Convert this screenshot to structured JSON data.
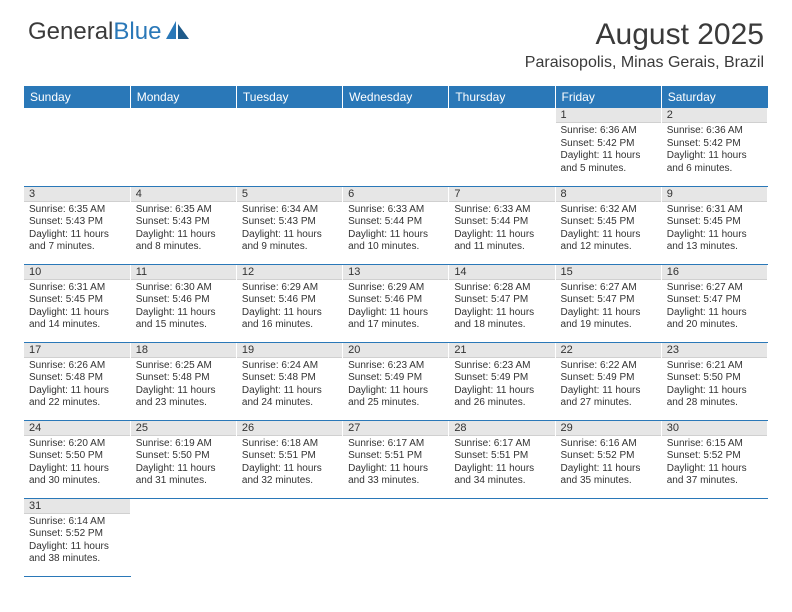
{
  "logo": {
    "text1": "General",
    "text2": "Blue"
  },
  "title": "August 2025",
  "location": "Paraisopolis, Minas Gerais, Brazil",
  "colors": {
    "header_bg": "#2a78b8",
    "header_text": "#ffffff",
    "daynum_bg": "#e6e6e6",
    "border": "#2a78b8",
    "text": "#333333",
    "logo_accent": "#2a78b8"
  },
  "fonts": {
    "title_size": 30,
    "location_size": 16,
    "dayheader_size": 12,
    "daynum_size": 11,
    "content_size": 10
  },
  "day_headers": [
    "Sunday",
    "Monday",
    "Tuesday",
    "Wednesday",
    "Thursday",
    "Friday",
    "Saturday"
  ],
  "weeks": [
    [
      null,
      null,
      null,
      null,
      null,
      {
        "n": "1",
        "sr": "6:36 AM",
        "ss": "5:42 PM",
        "dl": "11 hours and 5 minutes."
      },
      {
        "n": "2",
        "sr": "6:36 AM",
        "ss": "5:42 PM",
        "dl": "11 hours and 6 minutes."
      }
    ],
    [
      {
        "n": "3",
        "sr": "6:35 AM",
        "ss": "5:43 PM",
        "dl": "11 hours and 7 minutes."
      },
      {
        "n": "4",
        "sr": "6:35 AM",
        "ss": "5:43 PM",
        "dl": "11 hours and 8 minutes."
      },
      {
        "n": "5",
        "sr": "6:34 AM",
        "ss": "5:43 PM",
        "dl": "11 hours and 9 minutes."
      },
      {
        "n": "6",
        "sr": "6:33 AM",
        "ss": "5:44 PM",
        "dl": "11 hours and 10 minutes."
      },
      {
        "n": "7",
        "sr": "6:33 AM",
        "ss": "5:44 PM",
        "dl": "11 hours and 11 minutes."
      },
      {
        "n": "8",
        "sr": "6:32 AM",
        "ss": "5:45 PM",
        "dl": "11 hours and 12 minutes."
      },
      {
        "n": "9",
        "sr": "6:31 AM",
        "ss": "5:45 PM",
        "dl": "11 hours and 13 minutes."
      }
    ],
    [
      {
        "n": "10",
        "sr": "6:31 AM",
        "ss": "5:45 PM",
        "dl": "11 hours and 14 minutes."
      },
      {
        "n": "11",
        "sr": "6:30 AM",
        "ss": "5:46 PM",
        "dl": "11 hours and 15 minutes."
      },
      {
        "n": "12",
        "sr": "6:29 AM",
        "ss": "5:46 PM",
        "dl": "11 hours and 16 minutes."
      },
      {
        "n": "13",
        "sr": "6:29 AM",
        "ss": "5:46 PM",
        "dl": "11 hours and 17 minutes."
      },
      {
        "n": "14",
        "sr": "6:28 AM",
        "ss": "5:47 PM",
        "dl": "11 hours and 18 minutes."
      },
      {
        "n": "15",
        "sr": "6:27 AM",
        "ss": "5:47 PM",
        "dl": "11 hours and 19 minutes."
      },
      {
        "n": "16",
        "sr": "6:27 AM",
        "ss": "5:47 PM",
        "dl": "11 hours and 20 minutes."
      }
    ],
    [
      {
        "n": "17",
        "sr": "6:26 AM",
        "ss": "5:48 PM",
        "dl": "11 hours and 22 minutes."
      },
      {
        "n": "18",
        "sr": "6:25 AM",
        "ss": "5:48 PM",
        "dl": "11 hours and 23 minutes."
      },
      {
        "n": "19",
        "sr": "6:24 AM",
        "ss": "5:48 PM",
        "dl": "11 hours and 24 minutes."
      },
      {
        "n": "20",
        "sr": "6:23 AM",
        "ss": "5:49 PM",
        "dl": "11 hours and 25 minutes."
      },
      {
        "n": "21",
        "sr": "6:23 AM",
        "ss": "5:49 PM",
        "dl": "11 hours and 26 minutes."
      },
      {
        "n": "22",
        "sr": "6:22 AM",
        "ss": "5:49 PM",
        "dl": "11 hours and 27 minutes."
      },
      {
        "n": "23",
        "sr": "6:21 AM",
        "ss": "5:50 PM",
        "dl": "11 hours and 28 minutes."
      }
    ],
    [
      {
        "n": "24",
        "sr": "6:20 AM",
        "ss": "5:50 PM",
        "dl": "11 hours and 30 minutes."
      },
      {
        "n": "25",
        "sr": "6:19 AM",
        "ss": "5:50 PM",
        "dl": "11 hours and 31 minutes."
      },
      {
        "n": "26",
        "sr": "6:18 AM",
        "ss": "5:51 PM",
        "dl": "11 hours and 32 minutes."
      },
      {
        "n": "27",
        "sr": "6:17 AM",
        "ss": "5:51 PM",
        "dl": "11 hours and 33 minutes."
      },
      {
        "n": "28",
        "sr": "6:17 AM",
        "ss": "5:51 PM",
        "dl": "11 hours and 34 minutes."
      },
      {
        "n": "29",
        "sr": "6:16 AM",
        "ss": "5:52 PM",
        "dl": "11 hours and 35 minutes."
      },
      {
        "n": "30",
        "sr": "6:15 AM",
        "ss": "5:52 PM",
        "dl": "11 hours and 37 minutes."
      }
    ],
    [
      {
        "n": "31",
        "sr": "6:14 AM",
        "ss": "5:52 PM",
        "dl": "11 hours and 38 minutes."
      },
      null,
      null,
      null,
      null,
      null,
      null
    ]
  ],
  "labels": {
    "sunrise": "Sunrise:",
    "sunset": "Sunset:",
    "daylight": "Daylight:"
  }
}
